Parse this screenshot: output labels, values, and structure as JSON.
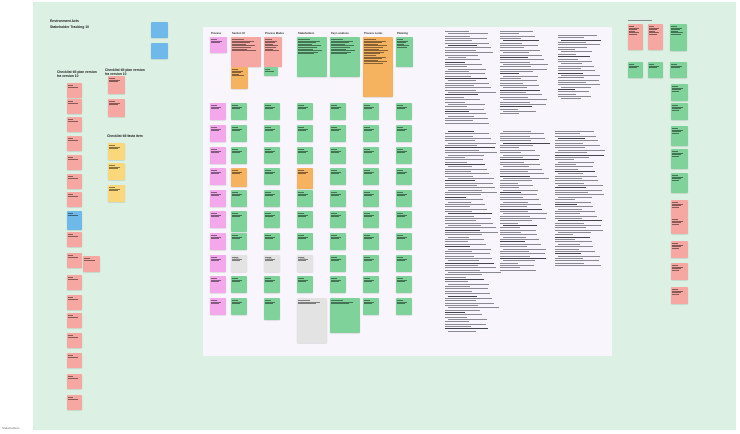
{
  "board": {
    "title_line1": "Environment Acts",
    "title_line2": "Stakeholder Tracking 10"
  },
  "left_headings": {
    "col_a": "Checklist till plan version fra version 10",
    "col_b": "Checklist till plan version fra version 10",
    "col_c": "Checklist till fasta item"
  },
  "matrix": {
    "headers": [
      "Process",
      "Section 10",
      "Process Modes",
      "Stakeholders",
      "Key Locations",
      "Process Looks",
      "Planning"
    ],
    "grey_label": "Draft"
  },
  "footer": {
    "corner_label": "Stakeholders"
  },
  "colors": {
    "canvas": "#dcf0e3",
    "board": "#f8f6fc",
    "pink": "#f6a7a1",
    "blue": "#6fb8ea",
    "yellow": "#f9d77a",
    "green": "#7fd39a",
    "orange": "#f5b35f",
    "magenta": "#f3a8eb",
    "grey": "#e3e3e3"
  }
}
